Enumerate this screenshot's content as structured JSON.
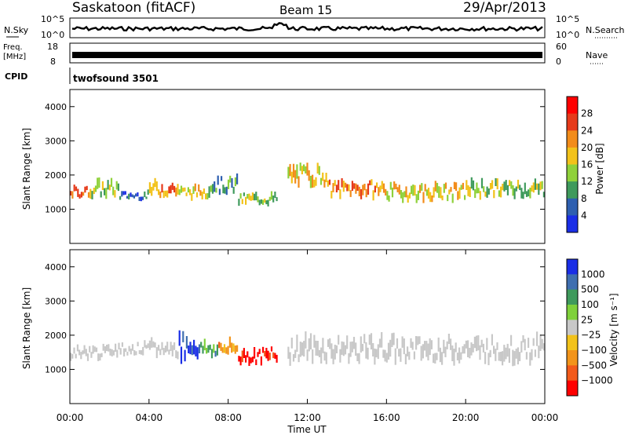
{
  "header": {
    "station": "Saskatoon (fitACF)",
    "beam": "Beam 15",
    "date": "29/Apr/2013"
  },
  "strips": {
    "nsky_label": "N.Sky",
    "nsky_tick_top": "10^5",
    "nsky_tick_bottom": "10^0",
    "nsearch_label": "N.Search",
    "freq_label_line1": "Freq.",
    "freq_label_line2": "[MHz]",
    "freq_tick_top": "18",
    "freq_tick_bottom": "8",
    "nave_label": "Nave",
    "nave_tick_top": "60",
    "nave_tick_bottom": "0",
    "cpid_label": "CPID",
    "cpid_value": "twofsound 3501"
  },
  "chart_data": [
    {
      "type": "heatmap",
      "panel": "power",
      "ylabel": "Slant Range [km]",
      "y_ticks": [
        "1000",
        "2000",
        "3000",
        "4000"
      ],
      "ylim": [
        0,
        4500
      ],
      "colorbar_label": "Power [dB]",
      "colorbar_ticks": [
        "4",
        "8",
        "12",
        "16",
        "20",
        "24",
        "28"
      ],
      "colors": [
        "#1a2ee6",
        "#2e5fb0",
        "#3f9a5c",
        "#8fd13a",
        "#f2c21a",
        "#f28c1a",
        "#e63a1a",
        "#ff0000"
      ],
      "bands": [
        {
          "x_start": 0.0,
          "x_end": 1.0,
          "range_center": 1500,
          "range_spread": 150,
          "level": 28
        },
        {
          "x_start": 1.0,
          "x_end": 2.5,
          "range_center": 1600,
          "range_spread": 200,
          "level": 16
        },
        {
          "x_start": 2.5,
          "x_end": 4.0,
          "range_center": 1400,
          "range_spread": 100,
          "level": 8
        },
        {
          "x_start": 4.0,
          "x_end": 5.5,
          "range_center": 1600,
          "range_spread": 200,
          "level": 24
        },
        {
          "x_start": 5.5,
          "x_end": 7.0,
          "range_center": 1500,
          "range_spread": 150,
          "level": 20
        },
        {
          "x_start": 7.0,
          "x_end": 8.5,
          "range_center": 1700,
          "range_spread": 200,
          "level": 12
        },
        {
          "x_start": 8.5,
          "x_end": 10.5,
          "range_center": 1300,
          "range_spread": 150,
          "level": 16
        },
        {
          "x_start": 11.0,
          "x_end": 13.0,
          "range_center": 2000,
          "range_spread": 250,
          "level": 20
        },
        {
          "x_start": 13.0,
          "x_end": 16.0,
          "range_center": 1600,
          "range_spread": 200,
          "level": 24
        },
        {
          "x_start": 16.0,
          "x_end": 20.0,
          "range_center": 1500,
          "range_spread": 200,
          "level": 20
        },
        {
          "x_start": 20.0,
          "x_end": 24.0,
          "range_center": 1600,
          "range_spread": 200,
          "level": 16
        }
      ]
    },
    {
      "type": "heatmap",
      "panel": "velocity",
      "ylabel": "Slant Range [km]",
      "xlabel": "Time UT",
      "x_ticks": [
        "00:00",
        "04:00",
        "08:00",
        "12:00",
        "16:00",
        "20:00",
        "00:00"
      ],
      "y_ticks": [
        "1000",
        "2000",
        "3000",
        "4000"
      ],
      "xlim": [
        0,
        24
      ],
      "ylim": [
        0,
        4500
      ],
      "colorbar_label": "Velocity [m s⁻¹]",
      "colorbar_ticks": [
        "1000",
        "500",
        "100",
        "25",
        "−25",
        "−100",
        "−500",
        "−1000"
      ],
      "colors": [
        "#1a2ee6",
        "#3f6fb0",
        "#3f9a5c",
        "#7fd13a",
        "#c8c8c8",
        "#f2c21a",
        "#f2941a",
        "#f25a1a",
        "#ff0000"
      ],
      "bands": [
        {
          "x_start": 0.0,
          "x_end": 2.0,
          "range_center": 1500,
          "range_spread": 150,
          "level": 25
        },
        {
          "x_start": 2.0,
          "x_end": 4.0,
          "range_center": 1600,
          "range_spread": 150,
          "level": 25
        },
        {
          "x_start": 4.0,
          "x_end": 5.5,
          "range_center": 1600,
          "range_spread": 200,
          "level": 25
        },
        {
          "x_start": 5.5,
          "x_end": 6.5,
          "range_center": 1700,
          "range_spread": 300,
          "level": 1000
        },
        {
          "x_start": 6.5,
          "x_end": 7.5,
          "range_center": 1600,
          "range_spread": 200,
          "level": 100
        },
        {
          "x_start": 7.5,
          "x_end": 8.5,
          "range_center": 1600,
          "range_spread": 200,
          "level": -500
        },
        {
          "x_start": 8.5,
          "x_end": 10.5,
          "range_center": 1400,
          "range_spread": 200,
          "level": -1000
        },
        {
          "x_start": 11.0,
          "x_end": 24.0,
          "range_center": 1600,
          "range_spread": 300,
          "level": 25
        }
      ]
    }
  ]
}
